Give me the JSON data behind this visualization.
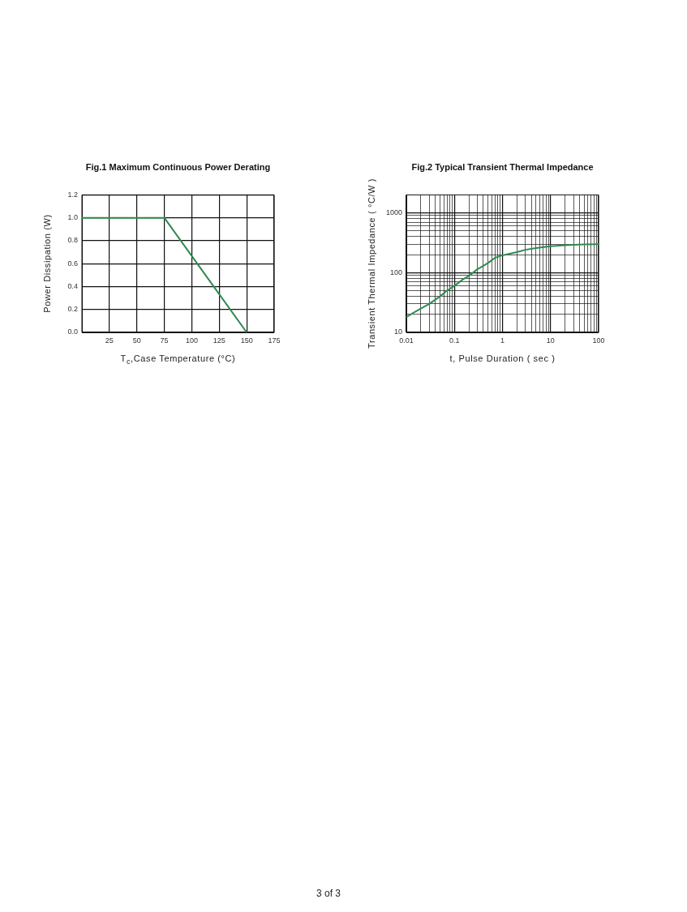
{
  "chart_data": [
    {
      "type": "line",
      "title": "Fig.1 Maximum Continuous Power Derating",
      "xlabel": "T$_{c}$,Case Temperature (°C)",
      "ylabel": "Power Dissipation (W)",
      "x": [
        0,
        75,
        150
      ],
      "values": [
        1,
        1,
        0
      ],
      "color": "#2e8a50",
      "xlim": [
        0,
        175
      ],
      "xticks": [
        25,
        50,
        75,
        100,
        125,
        150,
        175
      ],
      "ylim": [
        0,
        1.2
      ],
      "yticks": [
        {
          "value": 0,
          "label": "0.0"
        },
        0.2,
        0.4,
        0.6,
        0.8,
        {
          "value": 1,
          "label": "1.0"
        },
        1.2
      ],
      "grid": true,
      "marker": "none",
      "annotations": [
        "3 of 3"
      ]
    },
    {
      "type": "line",
      "title": "Fig.2 Typical Transient Thermal Impedance",
      "xlabel": "t, Pulse Duration ( sec )",
      "ylabel": "Transient Thermal Impedance ( °C/W )",
      "x": [
        0.01,
        0.015,
        0.02,
        0.03,
        0.05,
        0.07,
        0.1,
        0.15,
        0.2,
        0.3,
        0.4,
        0.5,
        0.7,
        1,
        2,
        3,
        5,
        10,
        20,
        30,
        50,
        100
      ],
      "values": [
        18,
        22,
        25,
        30,
        40,
        50,
        60,
        77,
        88,
        114,
        130,
        145,
        177,
        195,
        220,
        241,
        258,
        276,
        288,
        292,
        296,
        300
      ],
      "color": "#2e8a50",
      "log": "xy",
      "xlim": [
        0.01,
        100
      ],
      "xticks": [
        0.01,
        {
          "value": 0.02,
          "label": null
        },
        {
          "value": 0.03,
          "label": null
        },
        {
          "value": 0.04,
          "label": null
        },
        {
          "value": 0.05,
          "label": null
        },
        {
          "value": 0.06,
          "label": null
        },
        {
          "value": 0.07,
          "label": null
        },
        {
          "value": 0.08,
          "label": null
        },
        {
          "value": 0.09,
          "label": null
        },
        0.1,
        {
          "value": 0.2,
          "label": null
        },
        {
          "value": 0.3,
          "label": null
        },
        {
          "value": 0.4,
          "label": null
        },
        {
          "value": 0.5,
          "label": null
        },
        {
          "value": 0.6,
          "label": null
        },
        {
          "value": 0.7,
          "label": null
        },
        {
          "value": 0.8,
          "label": null
        },
        {
          "value": 0.9,
          "label": null
        },
        1,
        {
          "value": 2,
          "label": null
        },
        {
          "value": 3,
          "label": null
        },
        {
          "value": 4,
          "label": null
        },
        {
          "value": 5,
          "label": null
        },
        {
          "value": 6,
          "label": null
        },
        {
          "value": 7,
          "label": null
        },
        {
          "value": 8,
          "label": null
        },
        {
          "value": 9,
          "label": null
        },
        10,
        {
          "value": 20,
          "label": null
        },
        {
          "value": 30,
          "label": null
        },
        {
          "value": 40,
          "label": null
        },
        {
          "value": 50,
          "label": null
        },
        {
          "value": 60,
          "label": null
        },
        {
          "value": 70,
          "label": null
        },
        {
          "value": 80,
          "label": null
        },
        {
          "value": 90,
          "label": null
        },
        100
      ],
      "ylim": [
        10,
        2000
      ],
      "yticks": [
        10,
        {
          "value": 20,
          "label": null
        },
        {
          "value": 30,
          "label": null
        },
        {
          "value": 40,
          "label": null
        },
        {
          "value": 50,
          "label": null
        },
        {
          "value": 60,
          "label": null
        },
        {
          "value": 70,
          "label": null
        },
        {
          "value": 80,
          "label": null
        },
        {
          "value": 90,
          "label": null
        },
        100,
        {
          "value": 200,
          "label": null
        },
        {
          "value": 300,
          "label": null
        },
        {
          "value": 400,
          "label": null
        },
        {
          "value": 500,
          "label": null
        },
        {
          "value": 600,
          "label": null
        },
        {
          "value": 700,
          "label": null
        },
        {
          "value": 800,
          "label": null
        },
        {
          "value": 900,
          "label": null
        },
        1000
      ],
      "grid": true,
      "marker": "none"
    }
  ]
}
